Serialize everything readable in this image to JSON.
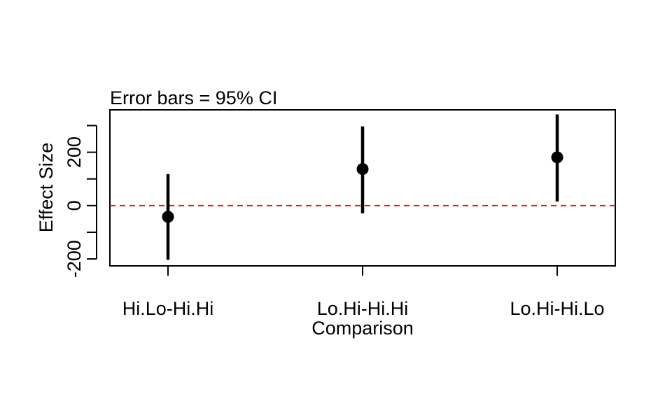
{
  "chart_data": {
    "type": "scatter",
    "title": "Error bars = 95% CI",
    "xlabel": "Comparison",
    "ylabel": "Effect Size",
    "categories": [
      "Hi.Lo-Hi.Hi",
      "Lo.Hi-Hi.Hi",
      "Lo.Hi-Hi.Lo"
    ],
    "points": [
      {
        "category": "Hi.Lo-Hi.Hi",
        "estimate": -42,
        "lower": -203,
        "upper": 118
      },
      {
        "category": "Lo.Hi-Hi.Hi",
        "estimate": 137,
        "lower": -29,
        "upper": 297
      },
      {
        "category": "Lo.Hi-Hi.Lo",
        "estimate": 181,
        "lower": 15,
        "upper": 342
      }
    ],
    "yticks": [
      -200,
      -100,
      0,
      100,
      200,
      300
    ],
    "ytick_labels": [
      {
        "value": -200,
        "label": "-200"
      },
      {
        "value": 0,
        "label": "0"
      },
      {
        "value": 200,
        "label": "200"
      }
    ],
    "ylim": [
      -226,
      359
    ],
    "reference_line": {
      "value": 0,
      "color": "#e31a1c",
      "style": "dashed"
    },
    "marker_color": "#000000",
    "grid": false
  }
}
